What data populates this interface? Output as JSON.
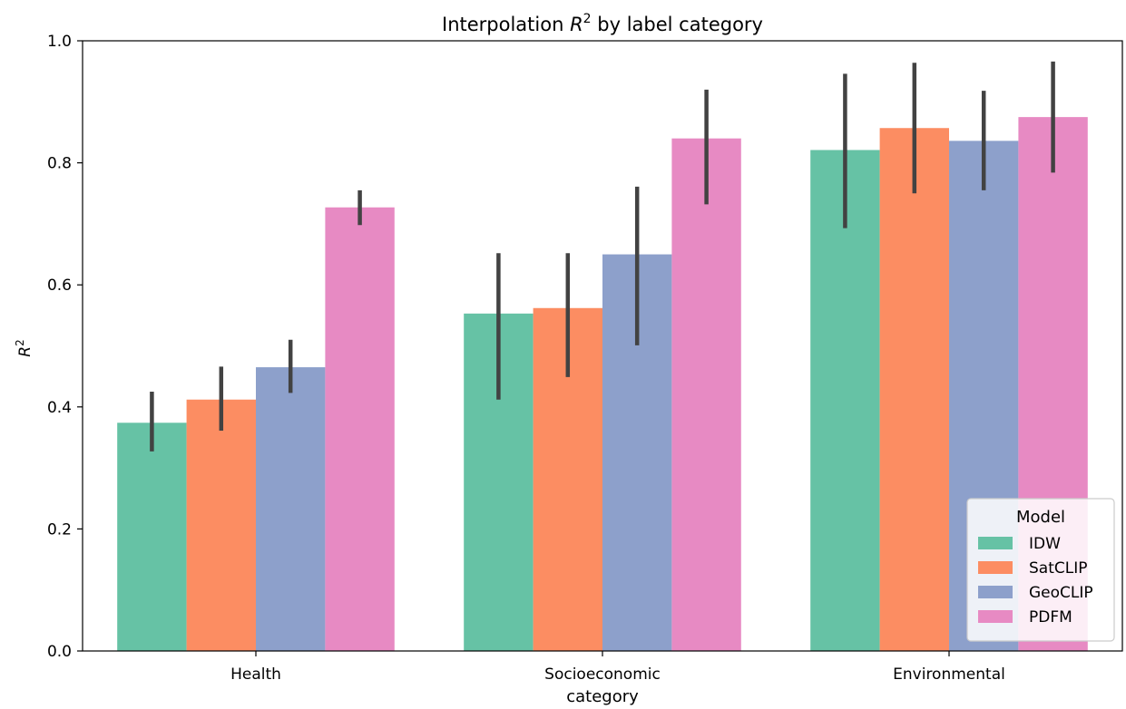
{
  "chart_data": {
    "type": "bar",
    "title_main": "Interpolation ",
    "title_var": "R",
    "title_sup": "2",
    "title_rest": " by label category",
    "xlabel": "category",
    "ylabel_var": "R",
    "ylabel_sup": "2",
    "ylim": [
      0,
      1.0
    ],
    "yticks": [
      "0.0",
      "0.2",
      "0.4",
      "0.6",
      "0.8",
      "1.0"
    ],
    "categories": [
      "Health",
      "Socioeconomic",
      "Environmental"
    ],
    "legend": {
      "title": "Model",
      "placement": "lower-right"
    },
    "series": [
      {
        "name": "IDW",
        "color": "#66c2a5",
        "values": [
          0.374,
          0.553,
          0.821
        ],
        "ci_low": [
          0.327,
          0.412,
          0.693
        ],
        "ci_high": [
          0.425,
          0.652,
          0.946
        ]
      },
      {
        "name": "SatCLIP",
        "color": "#fc8d62",
        "values": [
          0.412,
          0.562,
          0.857
        ],
        "ci_low": [
          0.361,
          0.449,
          0.75
        ],
        "ci_high": [
          0.466,
          0.652,
          0.964
        ]
      },
      {
        "name": "GeoCLIP",
        "color": "#8da0cb",
        "values": [
          0.465,
          0.65,
          0.836
        ],
        "ci_low": [
          0.423,
          0.501,
          0.755
        ],
        "ci_high": [
          0.51,
          0.761,
          0.918
        ]
      },
      {
        "name": "PDFM",
        "color": "#e78ac3",
        "values": [
          0.727,
          0.84,
          0.875
        ],
        "ci_low": [
          0.698,
          0.732,
          0.784
        ],
        "ci_high": [
          0.755,
          0.92,
          0.966
        ]
      }
    ]
  }
}
